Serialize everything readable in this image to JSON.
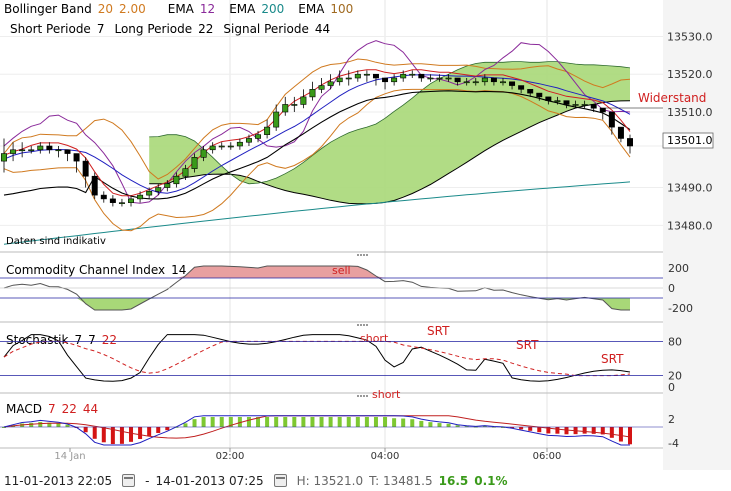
{
  "header": {
    "line1": [
      {
        "text": "Bollinger Band",
        "color": "#000000"
      },
      {
        "text": "20",
        "color": "#d07a20"
      },
      {
        "text": "2.00",
        "color": "#d07a20"
      },
      {
        "text": "EMA",
        "color": "#000000"
      },
      {
        "text": "12",
        "color": "#8a2a9a"
      },
      {
        "text": "EMA",
        "color": "#000000"
      },
      {
        "text": "200",
        "color": "#1a8a8a"
      },
      {
        "text": "EMA",
        "color": "#000000"
      },
      {
        "text": "100",
        "color": "#a06a20"
      }
    ],
    "line2": [
      {
        "text": "Short Periode",
        "color": "#000000"
      },
      {
        "text": "7",
        "color": "#000000"
      },
      {
        "text": "Long Periode",
        "color": "#000000"
      },
      {
        "text": "22",
        "color": "#000000"
      },
      {
        "text": "Signal Periode",
        "color": "#000000"
      },
      {
        "text": "44",
        "color": "#000000"
      }
    ]
  },
  "chart_data": {
    "type": "line",
    "price_axis": {
      "ticks": [
        13480.0,
        13490.0,
        13501.0,
        13510.0,
        13520.0,
        13530.0
      ],
      "ylim": [
        13474,
        13537
      ],
      "labels": [
        "13480.0",
        "13490.0",
        "13501.0",
        "13510.0",
        "13520.0",
        "13530.0"
      ]
    },
    "current_price_label": "13501.0",
    "annotations": {
      "resistance": "Widerstand",
      "disclaimer": "Daten sind indikativ"
    },
    "time_axis": {
      "labels": [
        "14 Jan",
        "02:00",
        "04:00",
        "06:00"
      ]
    },
    "price_series": {
      "close": [
        13497,
        13499,
        13500,
        13500,
        13501,
        13500,
        13500,
        13499,
        13497,
        13493,
        13488,
        13487,
        13486,
        13486,
        13487,
        13488,
        13489,
        13490,
        13491,
        13493,
        13495,
        13498,
        13500,
        13501,
        13501,
        13501,
        13502,
        13503,
        13504,
        13506,
        13510,
        13512,
        13512,
        13514,
        13516,
        13517,
        13518,
        13519,
        13519,
        13520,
        13520,
        13519,
        13518,
        13519,
        13520,
        13520,
        13519,
        13519,
        13519,
        13519,
        13518,
        13518,
        13518,
        13519,
        13518,
        13518,
        13517,
        13516,
        13515,
        13514,
        13513,
        13513,
        13512,
        13512,
        13512,
        13511,
        13510,
        13506,
        13503,
        13501
      ],
      "candles": [
        [
          13497,
          13503,
          13494,
          13499
        ],
        [
          13499,
          13502,
          13497,
          13500
        ],
        [
          13500,
          13502,
          13498,
          13500
        ],
        [
          13500,
          13501,
          13499,
          13500
        ],
        [
          13500,
          13502,
          13499,
          13501
        ],
        [
          13501,
          13502,
          13499,
          13500
        ],
        [
          13500,
          13501,
          13498,
          13500
        ],
        [
          13500,
          13500,
          13497,
          13499
        ],
        [
          13499,
          13499,
          13494,
          13497
        ],
        [
          13497,
          13498,
          13490,
          13493
        ],
        [
          13493,
          13494,
          13487,
          13488
        ],
        [
          13488,
          13489,
          13486,
          13487
        ],
        [
          13487,
          13488,
          13485,
          13486
        ],
        [
          13486,
          13487,
          13485,
          13486
        ],
        [
          13486,
          13488,
          13485,
          13487
        ],
        [
          13487,
          13489,
          13486,
          13488
        ],
        [
          13488,
          13490,
          13487,
          13489
        ],
        [
          13489,
          13491,
          13488,
          13490
        ],
        [
          13490,
          13492,
          13489,
          13491
        ],
        [
          13491,
          13494,
          13490,
          13493
        ],
        [
          13493,
          13496,
          13492,
          13495
        ],
        [
          13495,
          13499,
          13494,
          13498
        ],
        [
          13498,
          13501,
          13497,
          13500
        ],
        [
          13500,
          13502,
          13499,
          13501
        ],
        [
          13501,
          13502,
          13500,
          13501
        ],
        [
          13501,
          13502,
          13500,
          13501
        ],
        [
          13501,
          13503,
          13500,
          13502
        ],
        [
          13502,
          13504,
          13501,
          13503
        ],
        [
          13503,
          13505,
          13502,
          13504
        ],
        [
          13504,
          13508,
          13503,
          13506
        ],
        [
          13506,
          13512,
          13505,
          13510
        ],
        [
          13510,
          13514,
          13509,
          13512
        ],
        [
          13512,
          13514,
          13510,
          13512
        ],
        [
          13512,
          13516,
          13511,
          13514
        ],
        [
          13514,
          13518,
          13513,
          13516
        ],
        [
          13516,
          13519,
          13515,
          13517
        ],
        [
          13517,
          13520,
          13516,
          13518
        ],
        [
          13518,
          13521,
          13517,
          13519
        ],
        [
          13519,
          13521,
          13517,
          13519
        ],
        [
          13519,
          13521,
          13518,
          13520
        ],
        [
          13520,
          13521,
          13518,
          13520
        ],
        [
          13520,
          13520,
          13517,
          13519
        ],
        [
          13519,
          13519,
          13516,
          13518
        ],
        [
          13518,
          13520,
          13517,
          13519
        ],
        [
          13519,
          13521,
          13518,
          13520
        ],
        [
          13520,
          13521,
          13519,
          13520
        ],
        [
          13520,
          13520,
          13518,
          13519
        ],
        [
          13519,
          13520,
          13518,
          13519
        ],
        [
          13519,
          13520,
          13518,
          13519
        ],
        [
          13519,
          13520,
          13518,
          13519
        ],
        [
          13519,
          13519,
          13517,
          13518
        ],
        [
          13518,
          13519,
          13517,
          13518
        ],
        [
          13518,
          13519,
          13517,
          13518
        ],
        [
          13518,
          13520,
          13517,
          13519
        ],
        [
          13519,
          13519,
          13517,
          13518
        ],
        [
          13518,
          13519,
          13517,
          13518
        ],
        [
          13518,
          13518,
          13516,
          13517
        ],
        [
          13517,
          13517,
          13515,
          13516
        ],
        [
          13516,
          13516,
          13514,
          13515
        ],
        [
          13515,
          13515,
          13513,
          13514
        ],
        [
          13514,
          13514,
          13512,
          13513
        ],
        [
          13513,
          13514,
          13512,
          13513
        ],
        [
          13513,
          13513,
          13511,
          13512
        ],
        [
          13512,
          13513,
          13511,
          13512
        ],
        [
          13512,
          13513,
          13511,
          13512
        ],
        [
          13512,
          13512,
          13510,
          13511
        ],
        [
          13511,
          13511,
          13508,
          13510
        ],
        [
          13510,
          13510,
          13504,
          13506
        ],
        [
          13506,
          13506,
          13502,
          13503
        ],
        [
          13503,
          13504,
          13499,
          13501
        ]
      ]
    },
    "cci": {
      "label": "Commodity Channel Index",
      "period": "14",
      "ticks": [
        "200",
        "0",
        "-200"
      ],
      "signal": "sell"
    },
    "stochastic": {
      "label": "Stochastik",
      "params": [
        "7",
        "7",
        "22"
      ],
      "ticks": [
        "80",
        "20",
        "0"
      ],
      "signals": [
        "short",
        "SRT",
        "SRT",
        "SRT"
      ]
    },
    "macd": {
      "label": "MACD",
      "params": [
        "7",
        "22",
        "44"
      ],
      "ticks": [
        "2",
        "-4"
      ],
      "signal": "short"
    }
  },
  "footer": {
    "from": "11-01-2013 22:05",
    "separator": "-",
    "to": "14-01-2013 07:25",
    "high": "H: 13521.0",
    "low": "T: 13481.5",
    "change": "16.5",
    "change_pct": "0.1%"
  },
  "colors": {
    "bollinger": "#d07a20",
    "ema12": "#8a2a9a",
    "ema200": "#1a8a8a",
    "ema100": "#a06a20",
    "cloud": "#a8d878",
    "red": "#d02020",
    "blue": "#2020c0"
  }
}
